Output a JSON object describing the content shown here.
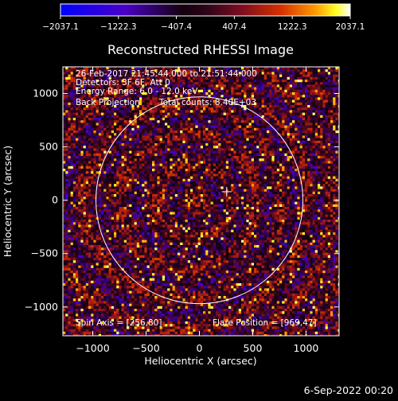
{
  "chart_data": {
    "type": "heatmap",
    "title": "Reconstructed RHESSI Image",
    "xlabel": "Heliocentric X (arcsec)",
    "ylabel": "Heliocentric Y (arcsec)",
    "xlim": [
      -1280,
      1310
    ],
    "ylim": [
      -1270,
      1250
    ],
    "xticks": [
      -1000,
      -500,
      0,
      500,
      1000
    ],
    "xtick_labels": [
      "−1000",
      "−500",
      "0",
      "500",
      "1000"
    ],
    "yticks": [
      -1000,
      -500,
      0,
      500,
      1000
    ],
    "ytick_labels": [
      "−1000",
      "−500",
      "0",
      "500",
      "1000"
    ],
    "colorbar": {
      "min": -2037.1,
      "max": 2037.1,
      "tick_values": [
        -2037.1,
        -1222.3,
        -407.4,
        407.4,
        1222.3,
        2037.1
      ],
      "tick_labels": [
        "−2037.1",
        "−1222.3",
        "−407.4",
        "407.4",
        "1222.3",
        "2037.1"
      ],
      "colors": [
        "#0000ff",
        "#5000b4",
        "#1a0010",
        "#6a0820",
        "#c02000",
        "#ff8000",
        "#ffff00",
        "#ffffff"
      ]
    },
    "annotations": [
      "26-Feb-2017 21:45:44.000 to 21:51:44.000",
      "Detectors: 3F 6F, Att 0",
      "Energy Range: 6.0 - 12.0 keV",
      "Back Projection",
      "Total counts: 8.40E+03"
    ],
    "spin_axis_label": "Spin Axis = [256,80]",
    "flare_position_label": "Flare Position = [969,47]",
    "spin_axis": [
      256,
      80
    ],
    "solar_disk": {
      "center": [
        0,
        0
      ],
      "radius": 970
    },
    "grid": false
  },
  "footer": {
    "timestamp": "6-Sep-2022 00:20"
  }
}
